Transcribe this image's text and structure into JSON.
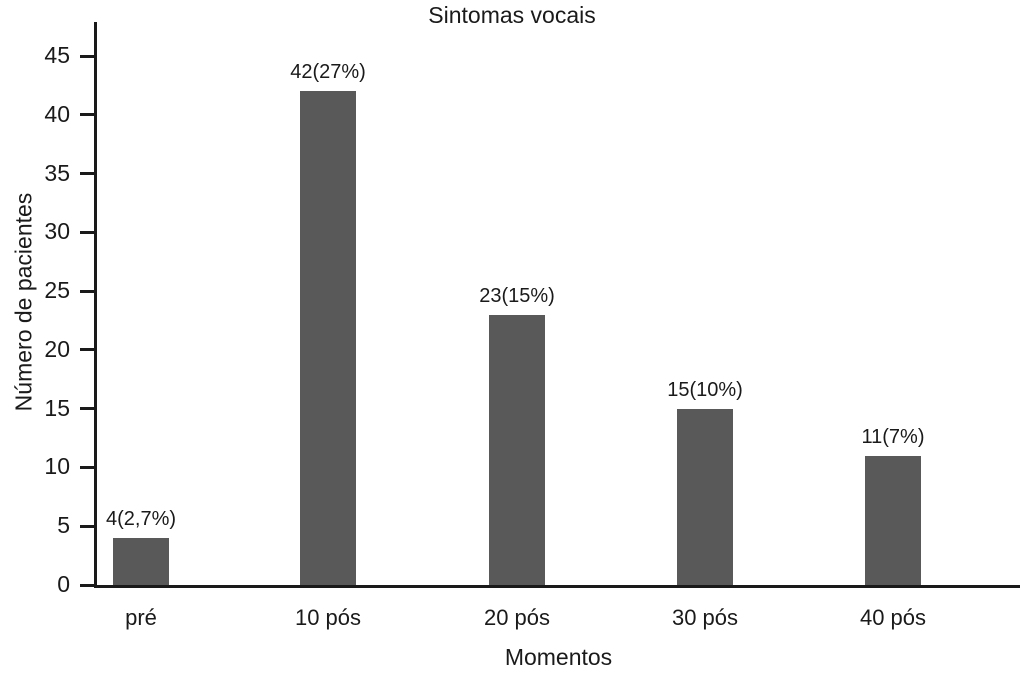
{
  "chart_data": {
    "type": "bar",
    "title": "Sintomas vocais",
    "xlabel": "Momentos",
    "ylabel": "Número de pacientes",
    "categories": [
      "pré",
      "10 pós",
      "20 pós",
      "30 pós",
      "40 pós"
    ],
    "values": [
      4,
      42,
      23,
      15,
      11
    ],
    "bar_labels": [
      "4(2,7%)",
      "42(27%)",
      "23(15%)",
      "15(10%)",
      "11(7%)"
    ],
    "yticks": [
      0,
      5,
      10,
      15,
      20,
      25,
      30,
      35,
      40,
      45
    ],
    "ylim": [
      0,
      45
    ],
    "grid": false,
    "legend_position": "none",
    "bar_color": "#595959",
    "axis_color": "#1a1a1a",
    "background_color": "#ffffff"
  }
}
